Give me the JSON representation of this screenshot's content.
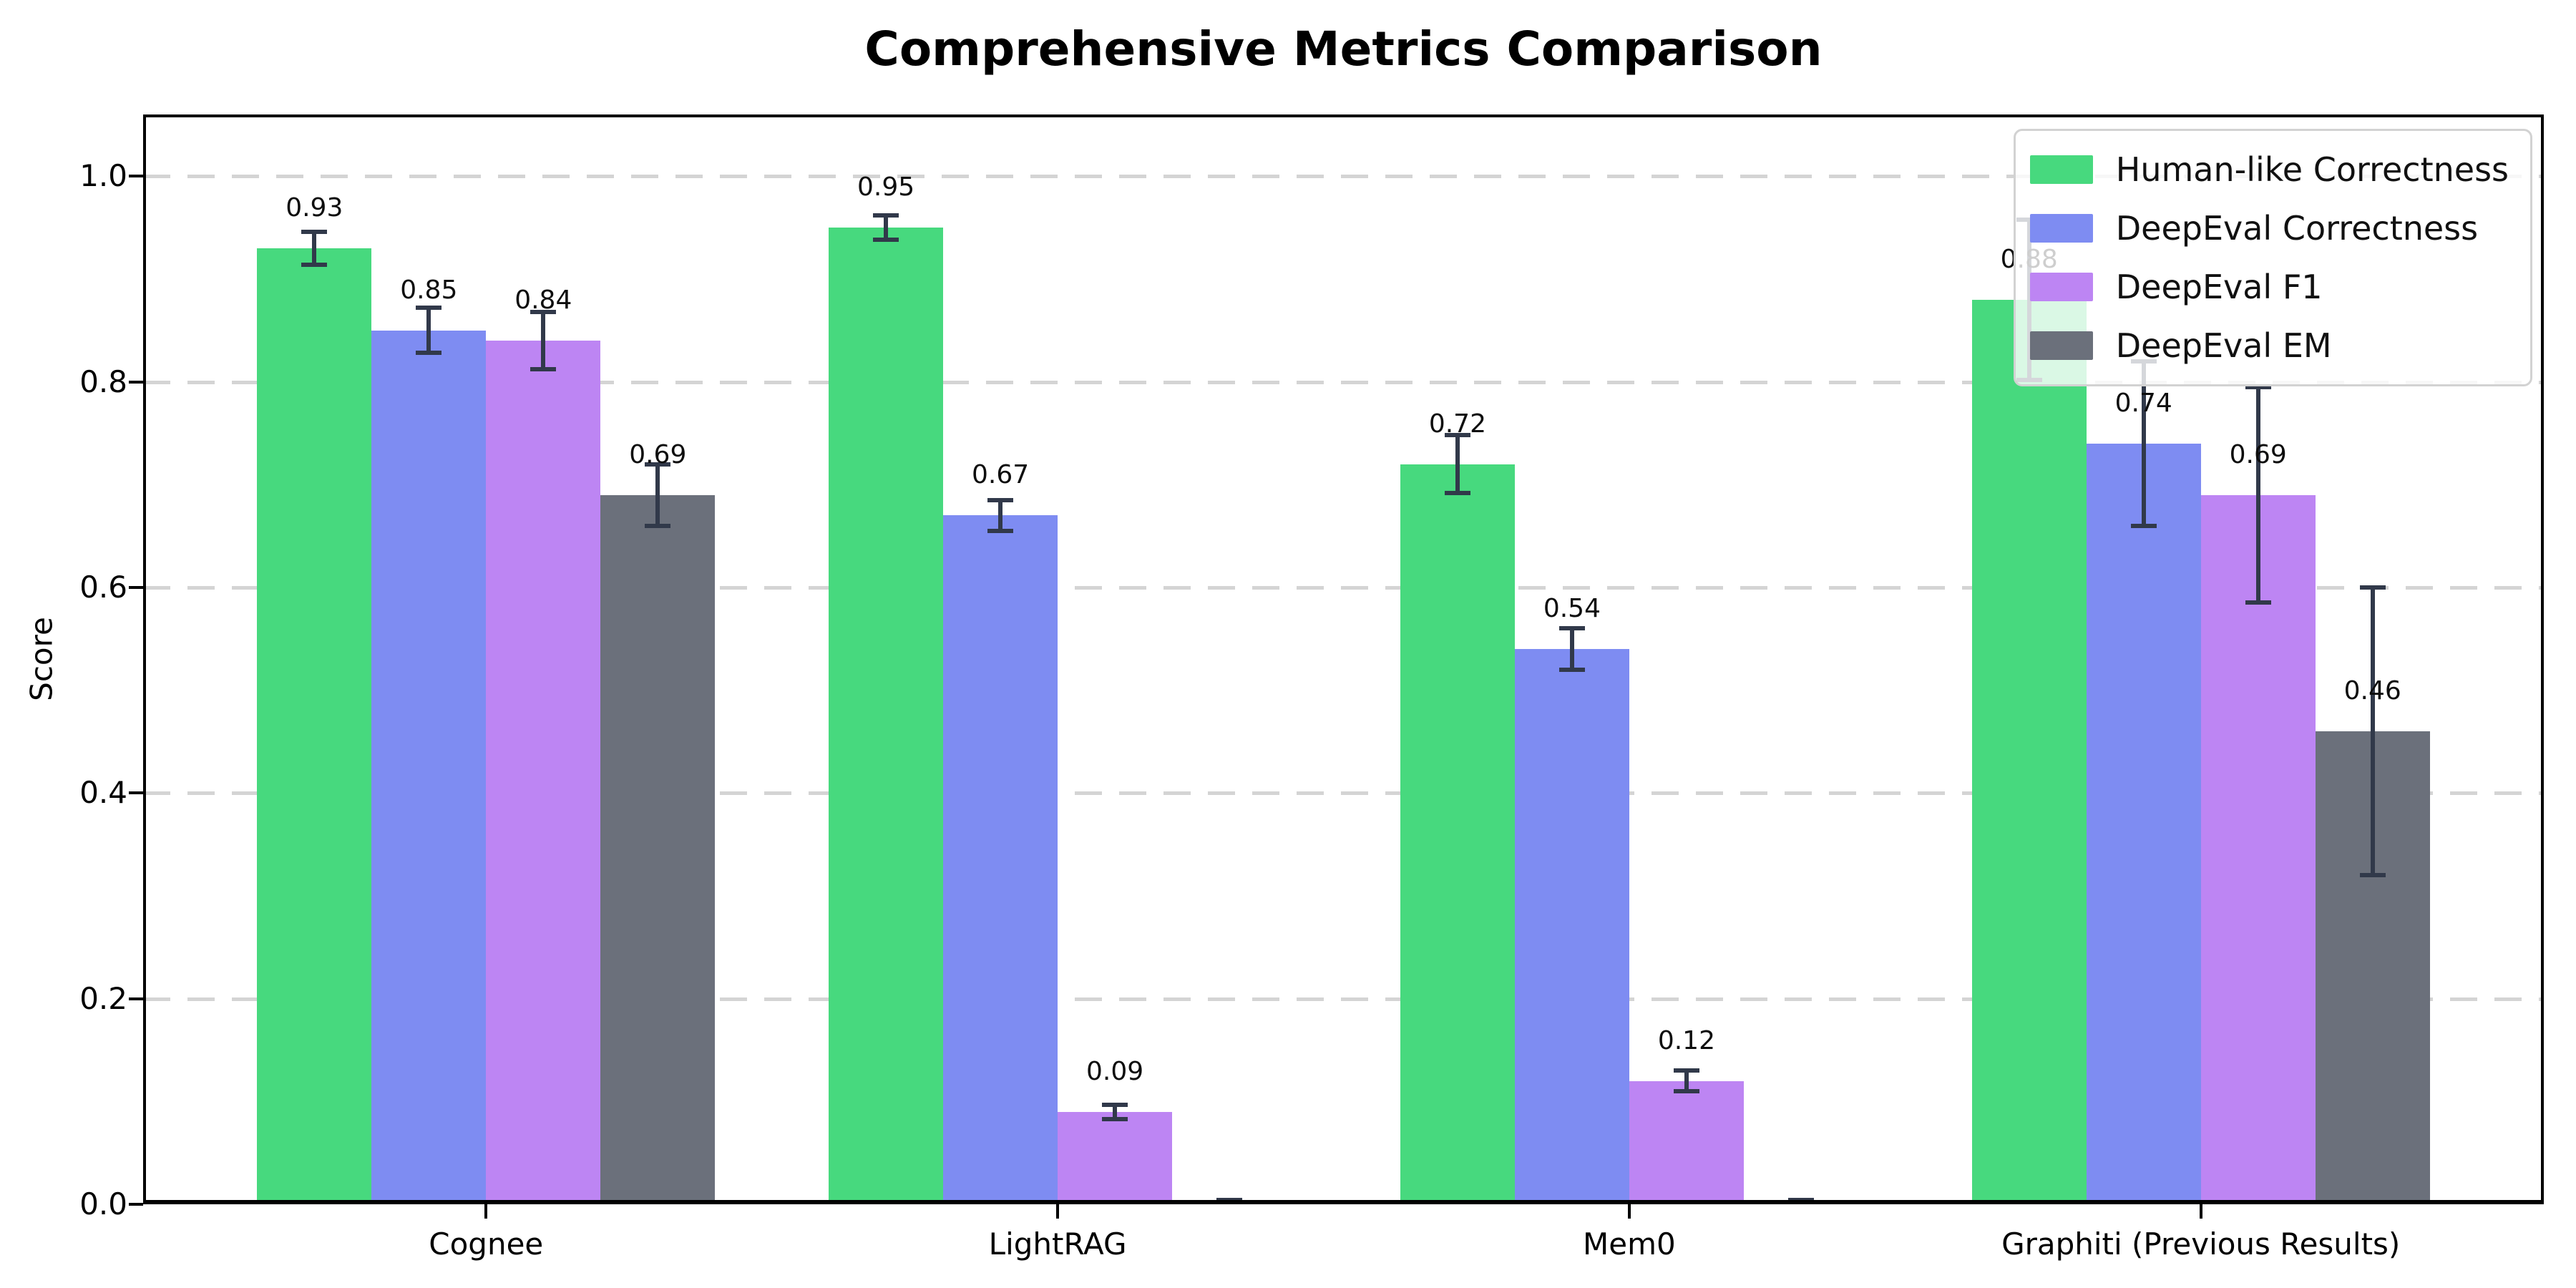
{
  "figure": {
    "title": "Comprehensive Metrics Comparison"
  },
  "chart_data": {
    "type": "bar",
    "title": "Comprehensive Metrics Comparison",
    "xlabel": "",
    "ylabel": "Score",
    "categories": [
      "Cognee",
      "LightRAG",
      "Mem0",
      "Graphiti (Previous Results)"
    ],
    "series": [
      {
        "name": "Human-like Correctness",
        "color": "#47d97e",
        "values": [
          0.93,
          0.95,
          0.72,
          0.88
        ],
        "errors": [
          0.016,
          0.012,
          0.028,
          0.078
        ],
        "labels": [
          "0.93",
          "0.95",
          "0.72",
          "0.88"
        ]
      },
      {
        "name": "DeepEval Correctness",
        "color": "#7e8cf2",
        "values": [
          0.85,
          0.67,
          0.54,
          0.74
        ],
        "errors": [
          0.022,
          0.015,
          0.02,
          0.08
        ],
        "labels": [
          "0.85",
          "0.67",
          "0.54",
          "0.74"
        ]
      },
      {
        "name": "DeepEval F1",
        "color": "#bd85f3",
        "values": [
          0.84,
          0.09,
          0.12,
          0.69
        ],
        "errors": [
          0.028,
          0.007,
          0.01,
          0.105
        ],
        "labels": [
          "0.84",
          "0.09",
          "0.12",
          "0.69"
        ]
      },
      {
        "name": "DeepEval EM",
        "color": "#6b707b",
        "values": [
          0.69,
          0.0,
          0.0,
          0.46
        ],
        "errors": [
          0.03,
          0.004,
          0.004,
          0.14
        ],
        "labels": [
          "0.69",
          "",
          "",
          "0.46"
        ]
      }
    ],
    "yticks": {
      "values": [
        0,
        0.2,
        0.4,
        0.6,
        0.8,
        1.0
      ],
      "labels": [
        "0.0",
        "0.2",
        "0.4",
        "0.6",
        "0.8",
        "1.0"
      ]
    },
    "ylim": [
      0,
      1.06
    ],
    "grid": "horizontal dashed at yticks",
    "legend_position": "upper right",
    "error_bar_color": "#31394a"
  }
}
